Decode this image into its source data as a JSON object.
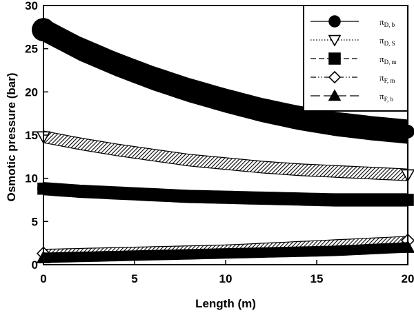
{
  "chart_data": {
    "type": "line",
    "title": "",
    "xlabel": "Length (m)",
    "ylabel": "Osmotic pressure (bar)",
    "xlim": [
      0,
      20
    ],
    "ylim": [
      0,
      30
    ],
    "xticks": [
      0,
      5,
      10,
      15,
      20
    ],
    "yticks": [
      0,
      5,
      10,
      15,
      20,
      25,
      30
    ],
    "grid": false,
    "legend_position": "top-right",
    "series": [
      {
        "name": "π",
        "subscript": "D, b",
        "marker": "filled-circle",
        "linestyle": "solid",
        "x": [
          0,
          2,
          4,
          6,
          8,
          10,
          12,
          14,
          16,
          18,
          20
        ],
        "y": [
          27.2,
          25.0,
          23.2,
          21.6,
          20.2,
          19.0,
          17.9,
          17.0,
          16.3,
          15.8,
          15.4
        ]
      },
      {
        "name": "π",
        "subscript": "D, S",
        "marker": "open-triangle-down",
        "linestyle": "dotted",
        "x": [
          0,
          2,
          4,
          6,
          8,
          10,
          12,
          14,
          16,
          18,
          20
        ],
        "y": [
          14.8,
          14.0,
          13.3,
          12.7,
          12.1,
          11.7,
          11.3,
          11.0,
          10.8,
          10.6,
          10.4
        ]
      },
      {
        "name": "π",
        "subscript": "D, m",
        "marker": "filled-square",
        "linestyle": "dashed",
        "x": [
          0,
          2,
          4,
          6,
          8,
          10,
          12,
          14,
          16,
          18,
          20
        ],
        "y": [
          8.8,
          8.5,
          8.3,
          8.1,
          7.9,
          7.8,
          7.7,
          7.6,
          7.5,
          7.5,
          7.5
        ]
      },
      {
        "name": "π",
        "subscript": "F, m",
        "marker": "open-diamond",
        "linestyle": "dash-dot-dot",
        "x": [
          0,
          2,
          4,
          6,
          8,
          10,
          12,
          14,
          16,
          18,
          20
        ],
        "y": [
          1.3,
          1.4,
          1.5,
          1.6,
          1.7,
          1.8,
          2.0,
          2.2,
          2.4,
          2.6,
          2.8
        ]
      },
      {
        "name": "π",
        "subscript": "F, b",
        "marker": "filled-triangle-up",
        "linestyle": "long-dash",
        "x": [
          0,
          2,
          4,
          6,
          8,
          10,
          12,
          14,
          16,
          18,
          20
        ],
        "y": [
          0.8,
          0.9,
          1.0,
          1.1,
          1.2,
          1.3,
          1.4,
          1.5,
          1.6,
          1.8,
          2.0
        ]
      }
    ]
  }
}
